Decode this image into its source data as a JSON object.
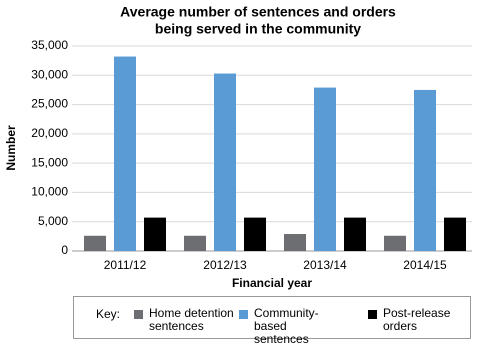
{
  "chart_data": {
    "type": "bar",
    "title": [
      "Average number of sentences and orders",
      "being served in the community"
    ],
    "y_label": "Number",
    "x_label": "Financial year",
    "legend_title": "Key:",
    "categories": [
      "2011/12",
      "2012/13",
      "2013/14",
      "2014/15"
    ],
    "series": [
      {
        "name": "Home detention sentences",
        "color": "#6d6e71",
        "values": [
          2600,
          2600,
          2900,
          2600
        ]
      },
      {
        "name": "Community-based sentences",
        "color": "#5b9bd5",
        "values": [
          33200,
          30300,
          27900,
          27500
        ]
      },
      {
        "name": "Post-release orders",
        "color": "#000000",
        "values": [
          5700,
          5700,
          5700,
          5700
        ]
      }
    ],
    "ylim": [
      0,
      35000
    ],
    "yticks": [
      0,
      {
        "value": 5000,
        "label": "5,000"
      },
      {
        "value": 10000,
        "label": "10,000"
      },
      {
        "value": 15000,
        "label": "15,000"
      },
      {
        "value": 20000,
        "label": "20,000"
      },
      {
        "value": 25000,
        "label": "25,000"
      },
      {
        "value": 30000,
        "label": "30,000"
      },
      {
        "value": 35000,
        "label": "35,000"
      }
    ],
    "grid": true
  }
}
